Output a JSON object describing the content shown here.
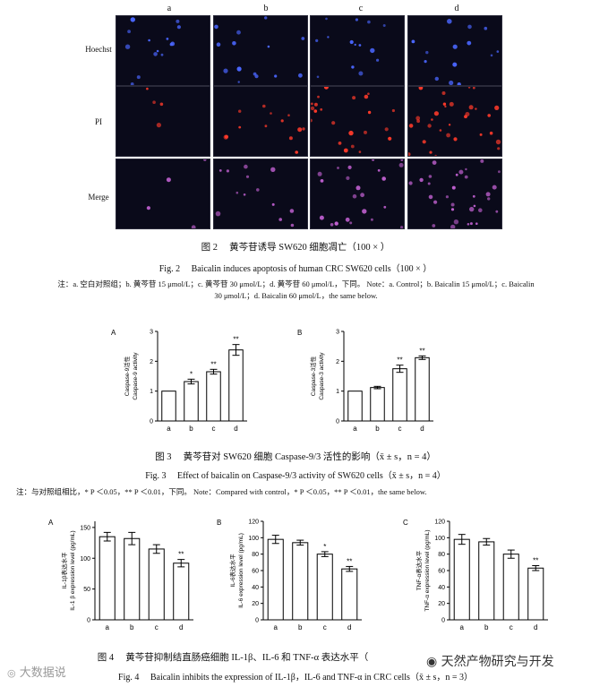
{
  "fig2": {
    "columns": [
      "a",
      "b",
      "c",
      "d"
    ],
    "rows": [
      "Hoechst",
      "PI",
      "Merge"
    ],
    "caption_cn": "图 2　 黄芩苷诱导 SW620 细胞凋亡（100 × ）",
    "caption_en": "Fig. 2　 Baicalin induces apoptosis of human CRC SW620 cells（100 × ）",
    "note_line1": "注：a. 空白对照组；b. 黄芩苷 15 μmol/L；c. 黄芩苷 30 μmol/L；d. 黄芩苷 60 μmol/L，下同。 Note：a. Control；b. Baicalin 15 μmol/L；c. Baicalin",
    "note_line2": "30 μmol/L；d. Baicalin 60 μmol/L，the same below.",
    "colors": {
      "hoechst": "#4a66ff",
      "pi": "#ff3a2a",
      "merge": "#c060d0",
      "background": "#0a0a1a"
    }
  },
  "fig3": {
    "caption_cn": "图 3　 黄芩苷对 SW620 细胞 Caspase-9/3 活性的影响（x̄ ± s，n = 4）",
    "caption_en": "Fig. 3　 Effect of baicalin on Caspase-9/3 activity of SW620 cells（x̄ ± s，n = 4）",
    "note": "注：与对照组相比，* P ＜0.05，** P ＜0.01，下同。 Note：Compared with control，* P ＜0.05，** P ＜0.01，the same below."
  },
  "fig4": {
    "caption_cn": "图 4　 黄芩苷抑制结直肠癌细胞 IL-1β、IL-6 和 TNF-α 表达水平（",
    "caption_en": "Fig. 4　 Baicalin inhibits the expression of IL-1β，IL-6 and TNF-α in CRC cells（x̄ ± s，n = 3）"
  },
  "watermarks": {
    "left": "大数据说",
    "right": "天然产物研究与开发"
  },
  "chart_data": [
    {
      "type": "bar",
      "panel": "A",
      "categories": [
        "a",
        "b",
        "c",
        "d"
      ],
      "values": [
        1.0,
        1.32,
        1.65,
        2.38
      ],
      "errors": [
        0,
        0.08,
        0.08,
        0.18
      ],
      "sig": [
        "",
        "*",
        "**",
        "**"
      ],
      "ylabel": "Caspase-9活性\nCaspase-9 activity",
      "yticks": [
        0,
        1,
        2,
        3
      ],
      "ylim": [
        0,
        3
      ]
    },
    {
      "type": "bar",
      "panel": "B",
      "categories": [
        "a",
        "b",
        "c",
        "d"
      ],
      "values": [
        1.0,
        1.12,
        1.75,
        2.12
      ],
      "errors": [
        0,
        0.04,
        0.12,
        0.06
      ],
      "sig": [
        "",
        "",
        "**",
        "**"
      ],
      "ylabel": "Caspase-3活性\nCaspase-3 activity",
      "yticks": [
        0,
        1,
        2,
        3
      ],
      "ylim": [
        0,
        3
      ]
    },
    {
      "type": "bar",
      "panel": "A",
      "categories": [
        "a",
        "b",
        "c",
        "d"
      ],
      "values": [
        135,
        132,
        115,
        92
      ],
      "errors": [
        7,
        10,
        7,
        6
      ],
      "sig": [
        "",
        "",
        "",
        "**"
      ],
      "ylabel": "IL-1β表达水平\nIL-1 β expression level (pg/mL)",
      "yticks": [
        0,
        50,
        100,
        150
      ],
      "ylim": [
        0,
        160
      ]
    },
    {
      "type": "bar",
      "panel": "B",
      "categories": [
        "a",
        "b",
        "c",
        "d"
      ],
      "values": [
        98,
        94,
        80,
        62
      ],
      "errors": [
        5,
        3,
        3,
        3
      ],
      "sig": [
        "",
        "",
        "*",
        "**"
      ],
      "ylabel": "IL-6表达水平\nIL-6 expression level (pg/mL)",
      "yticks": [
        0,
        20,
        40,
        60,
        80,
        100,
        120
      ],
      "ylim": [
        0,
        120
      ]
    },
    {
      "type": "bar",
      "panel": "C",
      "categories": [
        "a",
        "b",
        "c",
        "d"
      ],
      "values": [
        98,
        95,
        80,
        63
      ],
      "errors": [
        6,
        4,
        5,
        3
      ],
      "sig": [
        "",
        "",
        "",
        "**"
      ],
      "ylabel": "TNF-α表达水平\nTNF-α expression level (pg/mL)",
      "yticks": [
        0,
        20,
        40,
        60,
        80,
        100,
        120
      ],
      "ylim": [
        0,
        120
      ]
    }
  ]
}
